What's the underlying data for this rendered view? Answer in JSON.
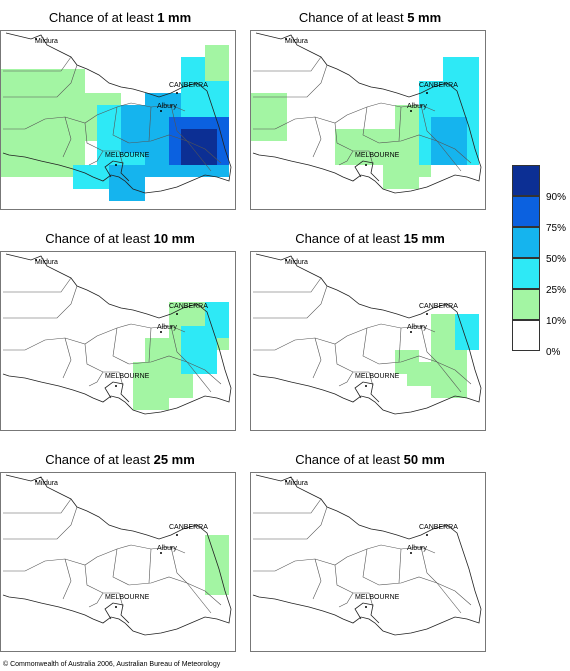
{
  "panels": [
    {
      "prefix": "Chance of at least ",
      "amount": "1 mm",
      "level": 0
    },
    {
      "prefix": "Chance of at least ",
      "amount": "5 mm",
      "level": 1
    },
    {
      "prefix": "Chance of at least ",
      "amount": "10 mm",
      "level": 2
    },
    {
      "prefix": "Chance of at least ",
      "amount": "15 mm",
      "level": 3
    },
    {
      "prefix": "Chance of at least ",
      "amount": "25 mm",
      "level": 4
    },
    {
      "prefix": "Chance of at least ",
      "amount": "50 mm",
      "level": 5
    }
  ],
  "places": {
    "mildura": "Mildura",
    "canberra": "CANBERRA",
    "albury": "Albury",
    "melbourne": "MELBOURNE"
  },
  "legend": {
    "labels": [
      "90%",
      "75%",
      "50%",
      "25%",
      "10%",
      "0%"
    ],
    "colors": [
      "#0c2f94",
      "#0b61e0",
      "#15b4ee",
      "#2ee9f6",
      "#a3f5a3",
      "#ffffff"
    ]
  },
  "copyright": "© Commonwealth of Australia 2006, Australian Bureau of Meteorology"
}
